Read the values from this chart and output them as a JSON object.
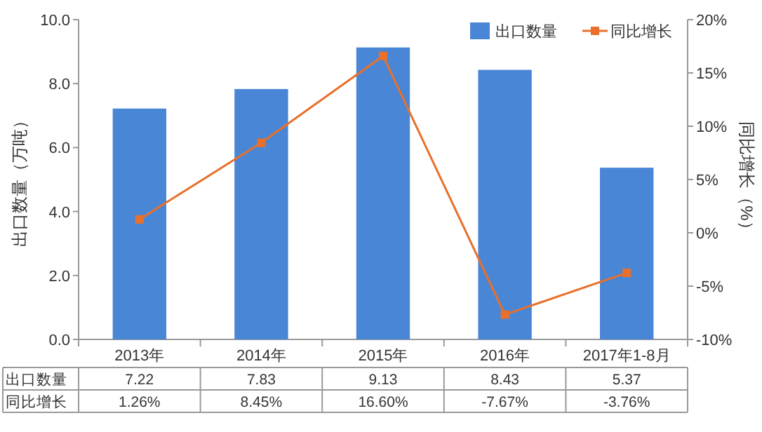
{
  "chart_data": {
    "type": "bar",
    "categories": [
      "2013年",
      "2014年",
      "2015年",
      "2016年",
      "2017年1-8月"
    ],
    "ylabel": "出口数量（万吨）",
    "y2label": "同比增长（%）",
    "ylim": [
      0,
      10
    ],
    "yticks": [
      {
        "value": 0,
        "label": "0.0"
      },
      {
        "value": 2,
        "label": "2.0"
      },
      {
        "value": 4,
        "label": "4.0"
      },
      {
        "value": 6,
        "label": "6.0"
      },
      {
        "value": 8,
        "label": "8.0"
      },
      {
        "value": 10,
        "label": "10.0"
      }
    ],
    "y2lim": [
      -10,
      20
    ],
    "y2ticks": [
      {
        "value": -10,
        "label": "-10%"
      },
      {
        "value": -5,
        "label": "-5%"
      },
      {
        "value": 0,
        "label": "0%"
      },
      {
        "value": 5,
        "label": "5%"
      },
      {
        "value": 10,
        "label": "10%"
      },
      {
        "value": 15,
        "label": "15%"
      },
      {
        "value": 20,
        "label": "20%"
      }
    ],
    "legend": "top right",
    "marker": "square",
    "series": [
      {
        "name": "出口数量",
        "color": "#4a86d6",
        "values": [
          7.22,
          7.83,
          9.13,
          8.43,
          5.37
        ],
        "value_labels": [
          "7.22",
          "7.83",
          "9.13",
          "8.43",
          "5.37"
        ]
      },
      {
        "name": "同比增长",
        "type": "line",
        "axis": "y2",
        "color": "#e8702a",
        "values": [
          1.26,
          8.45,
          16.6,
          -7.67,
          -3.76
        ],
        "value_labels": [
          "1.26%",
          "8.45%",
          "16.60%",
          "-7.67%",
          "-3.76%"
        ]
      }
    ]
  }
}
